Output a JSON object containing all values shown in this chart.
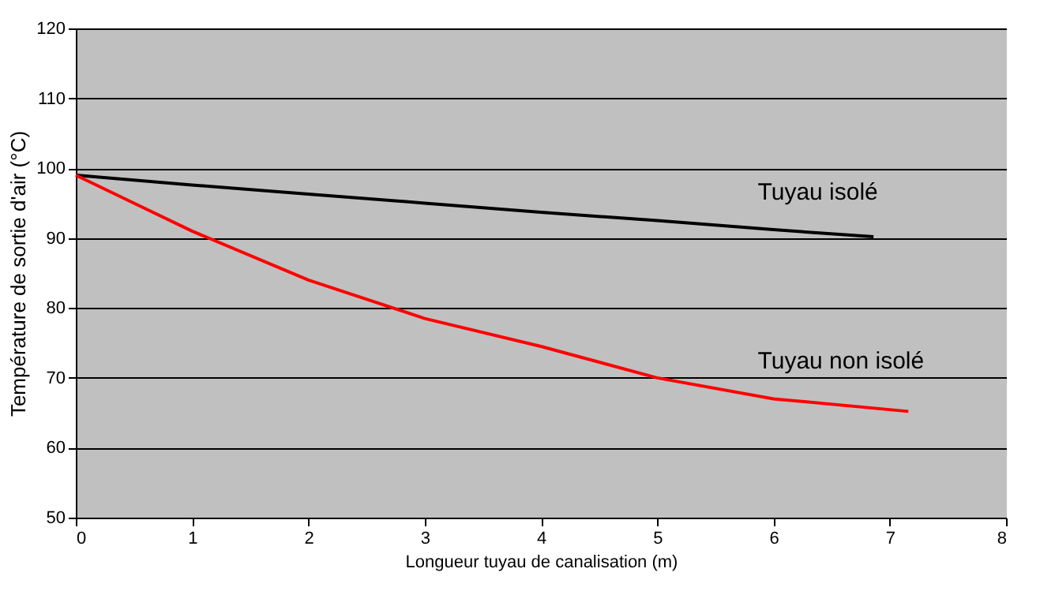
{
  "chart_data": {
    "type": "line",
    "xlabel": "Longueur tuyau de canalisation (m)",
    "ylabel": "Température de sortie d'air (°C)",
    "xlim": [
      0,
      8
    ],
    "xticks": [
      0,
      1,
      2,
      3,
      4,
      5,
      6,
      7,
      8
    ],
    "ylim": [
      50,
      120
    ],
    "yticks": [
      50,
      60,
      70,
      80,
      90,
      100,
      110,
      120
    ],
    "grid": "y",
    "series": [
      {
        "name": "Tuyau isolé",
        "color": "#000000",
        "x": [
          0,
          1,
          2,
          3,
          4,
          5,
          6,
          6.86
        ],
        "values": [
          99,
          97.6,
          96.3,
          95,
          93.7,
          92.5,
          91.2,
          90.2
        ]
      },
      {
        "name": "Tuyau non isolé",
        "color": "#ff0000",
        "x": [
          0,
          0.5,
          1,
          2,
          3,
          4,
          5,
          6,
          7.16
        ],
        "values": [
          99,
          95,
          91,
          84,
          78.5,
          74.5,
          70,
          67,
          65.2
        ]
      }
    ]
  }
}
